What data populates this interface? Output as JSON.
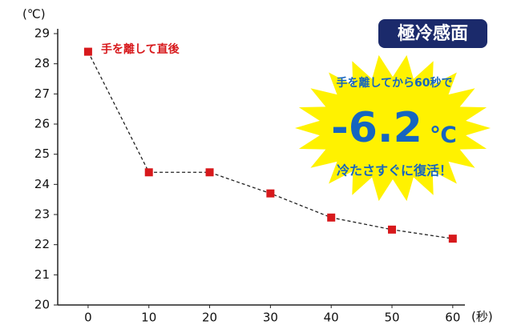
{
  "chart_data": {
    "type": "line",
    "y_unit_label": "(℃)",
    "x_unit_label": "(秒)",
    "annotation": "手を離して直後",
    "badge": "極冷感面",
    "burst_top": "手を離してから60秒で",
    "burst_value": "-6.2",
    "burst_unit": "℃",
    "burst_bottom": "冷たさすぐに復活！",
    "x": [
      0,
      10,
      20,
      30,
      40,
      50,
      60
    ],
    "series": [
      {
        "color": "#d7191c",
        "values": [
          28.4,
          24.4,
          24.4,
          23.7,
          22.9,
          22.5,
          22.2
        ]
      }
    ],
    "xlim": [
      -5,
      62
    ],
    "xticks": [
      0,
      10,
      20,
      30,
      40,
      50,
      60
    ],
    "ylim": [
      20,
      29
    ],
    "yticks": [
      20,
      21,
      22,
      23,
      24,
      25,
      26,
      27,
      28,
      29
    ]
  }
}
